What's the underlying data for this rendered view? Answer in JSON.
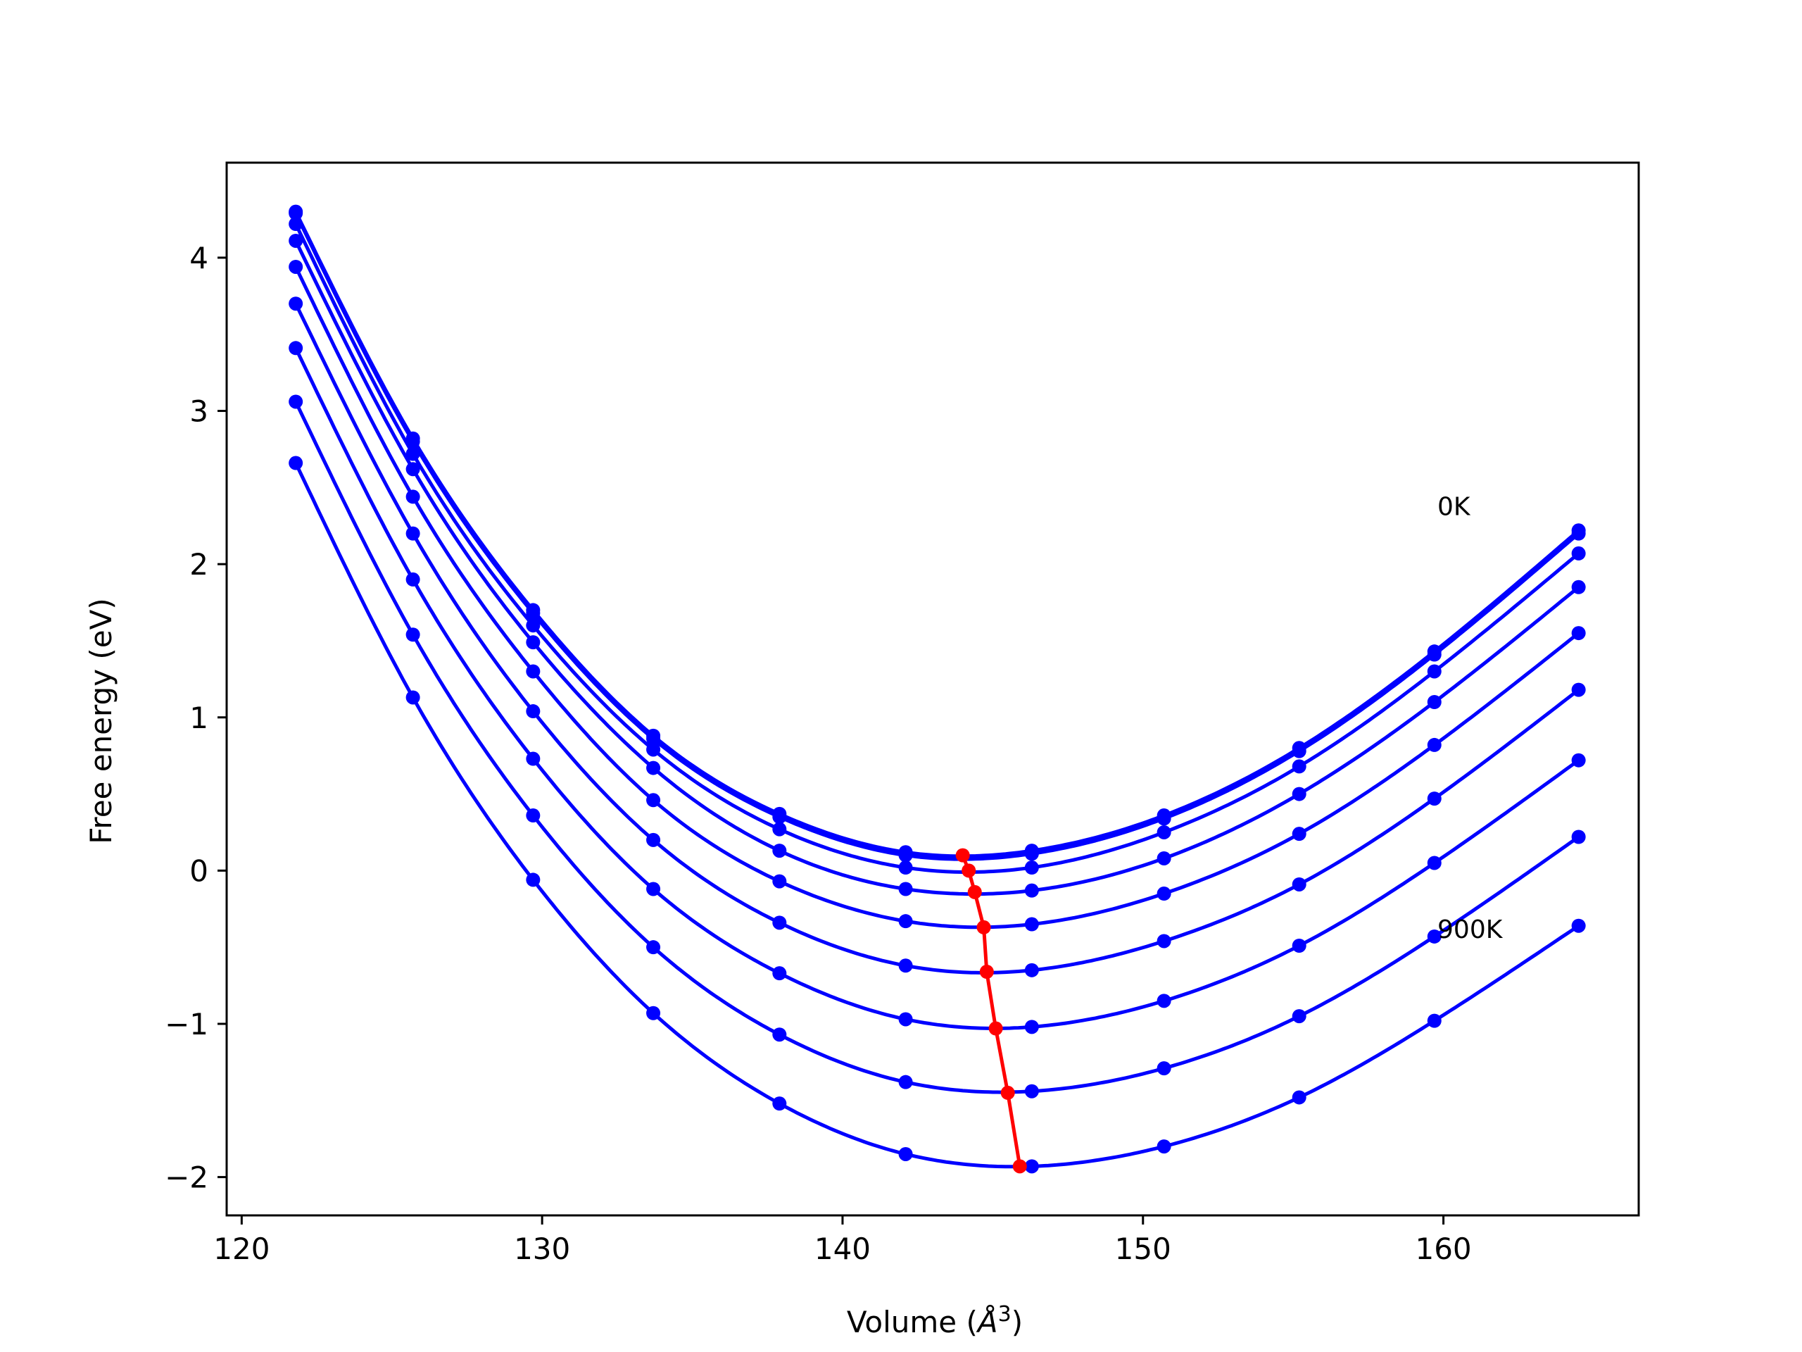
{
  "chart_data": {
    "type": "line",
    "title": "",
    "xlabel": "Volume (",
    "xlabel_sym": "Å",
    "xlabel_exp": "3",
    "xlabel_close": ")",
    "ylabel": "Free energy (eV)",
    "xlim": [
      119.5,
      166.5
    ],
    "ylim": [
      -2.25,
      4.62
    ],
    "xticks": [
      120,
      130,
      140,
      150,
      160
    ],
    "xtick_labels": [
      "120",
      "130",
      "140",
      "150",
      "160"
    ],
    "yticks": [
      -2,
      -1,
      0,
      1,
      2,
      3,
      4
    ],
    "ytick_labels": [
      "−2",
      "−1",
      "0",
      "1",
      "2",
      "3",
      "4"
    ],
    "grid": false,
    "curve_color": "#0000ff",
    "min_color": "#ff0000",
    "annotations": [
      {
        "text": "0K",
        "x": 159.8,
        "y": 2.32
      },
      {
        "text": "900K",
        "x": 159.8,
        "y": -0.44
      }
    ],
    "volumes": [
      121.8,
      125.7,
      129.7,
      133.7,
      137.9,
      142.1,
      146.3,
      150.7,
      155.2,
      159.7,
      164.5
    ],
    "series": [
      {
        "values": [
          4.3,
          2.82,
          1.7,
          0.88,
          0.37,
          0.12,
          0.13,
          0.36,
          0.8,
          1.43,
          2.22
        ]
      },
      {
        "values": [
          4.29,
          2.8,
          1.68,
          0.86,
          0.35,
          0.1,
          0.11,
          0.34,
          0.78,
          1.41,
          2.2
        ]
      },
      {
        "values": [
          4.22,
          2.72,
          1.6,
          0.79,
          0.27,
          0.02,
          0.02,
          0.25,
          0.68,
          1.3,
          2.07
        ]
      },
      {
        "values": [
          4.11,
          2.62,
          1.49,
          0.67,
          0.13,
          -0.12,
          -0.13,
          0.08,
          0.5,
          1.1,
          1.85
        ]
      },
      {
        "values": [
          3.94,
          2.44,
          1.3,
          0.46,
          -0.07,
          -0.33,
          -0.35,
          -0.15,
          0.24,
          0.82,
          1.55
        ]
      },
      {
        "values": [
          3.7,
          2.2,
          1.04,
          0.2,
          -0.34,
          -0.62,
          -0.65,
          -0.46,
          -0.09,
          0.47,
          1.18
        ]
      },
      {
        "values": [
          3.41,
          1.9,
          0.73,
          -0.12,
          -0.67,
          -0.97,
          -1.02,
          -0.85,
          -0.49,
          0.05,
          0.72
        ]
      },
      {
        "values": [
          3.06,
          1.54,
          0.36,
          -0.5,
          -1.07,
          -1.38,
          -1.44,
          -1.29,
          -0.95,
          -0.43,
          0.22
        ]
      },
      {
        "values": [
          2.66,
          1.13,
          -0.06,
          -0.93,
          -1.52,
          -1.85,
          -1.93,
          -1.8,
          -1.48,
          -0.98,
          -0.36
        ]
      }
    ],
    "minimum_path": {
      "x": [
        144.0,
        144.2,
        144.4,
        144.7,
        144.8,
        145.1,
        145.5,
        145.9
      ],
      "y": [
        0.1,
        0.0,
        -0.14,
        -0.37,
        -0.66,
        -1.03,
        -1.45,
        -1.93
      ]
    }
  }
}
